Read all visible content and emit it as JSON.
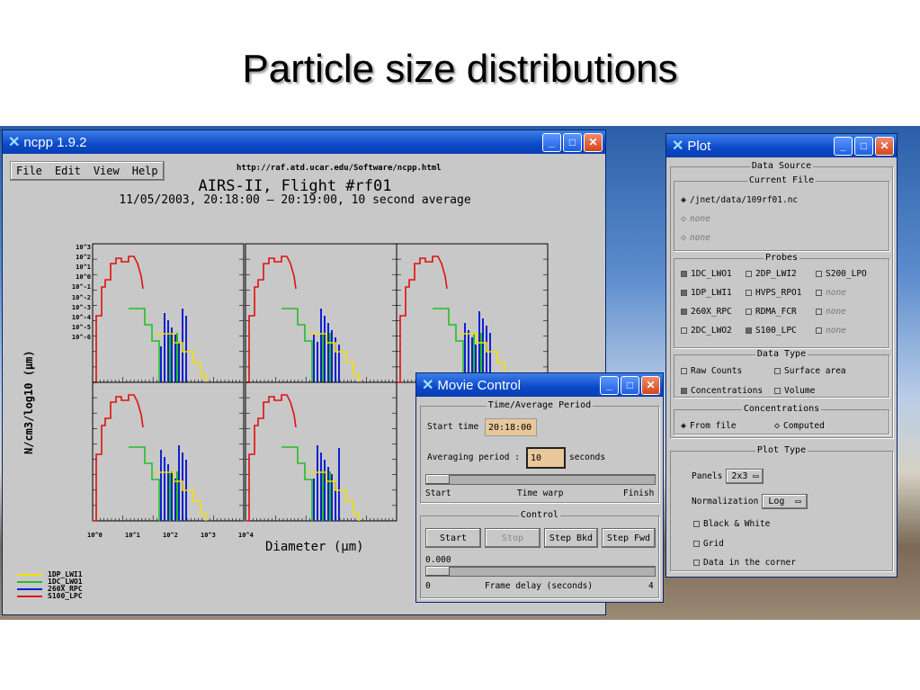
{
  "slide": {
    "title": "Particle size distributions"
  },
  "ncpp": {
    "window_title": "ncpp 1.9.2",
    "menu": [
      "File",
      "Edit",
      "View",
      "Help"
    ],
    "url": "http://raf.atd.ucar.edu/Software/ncpp.html",
    "plot_title": "AIRS-II, Flight #rf01",
    "plot_subtitle": "11/05/2003, 20:18:00 – 20:19:00, 10 second average",
    "ylabel": "N/cm3/log10 (µm)",
    "xlabel": "Diameter (µm)",
    "yticks": [
      "10^3",
      "10^2",
      "10^1",
      "10^0",
      "10^-1",
      "10^-2",
      "10^-3",
      "10^-4",
      "10^-5",
      "10^-6"
    ],
    "xticks": [
      "10^0",
      "10^1",
      "10^2",
      "10^3",
      "10^4"
    ],
    "legend": [
      {
        "label": "1DP_LWI1",
        "color": "#f0e000"
      },
      {
        "label": "1DC_LWO1",
        "color": "#20c020"
      },
      {
        "label": "260X_RPC",
        "color": "#1020d0"
      },
      {
        "label": "S100_LPC",
        "color": "#e01010"
      }
    ]
  },
  "movie": {
    "window_title": "Movie Control",
    "period_header": "Time/Average Period",
    "start_time_label": "Start time",
    "start_time_value": "20:18:00",
    "avg_label": "Averaging period :",
    "avg_value": "10",
    "avg_unit": "seconds",
    "warp_start": "Start",
    "warp_mid": "Time warp",
    "warp_end": "Finish",
    "control_header": "Control",
    "buttons": [
      "Start",
      "Stop",
      "Step Bkd",
      "Step Fwd"
    ],
    "delay_value": "0.000",
    "delay_min": "0",
    "delay_label": "Frame delay (seconds)",
    "delay_max": "4"
  },
  "plotwin": {
    "window_title": "Plot",
    "data_source": "Data Source",
    "current_file": "Current File",
    "files": [
      "/jnet/data/109rf01.nc",
      "none",
      "none"
    ],
    "probes_header": "Probes",
    "probes": [
      {
        "label": "1DC_LWO1",
        "on": true
      },
      {
        "label": "2DP_LWI2",
        "on": false
      },
      {
        "label": "S200_LPO",
        "on": false
      },
      {
        "label": "1DP_LWI1",
        "on": true
      },
      {
        "label": "HVPS_RPO1",
        "on": false
      },
      {
        "label": "none",
        "on": false,
        "dim": true
      },
      {
        "label": "260X_RPC",
        "on": true
      },
      {
        "label": "RDMA_FCR",
        "on": false
      },
      {
        "label": "none",
        "on": false,
        "dim": true
      },
      {
        "label": "2DC_LWO2",
        "on": false
      },
      {
        "label": "S100_LPC",
        "on": true
      },
      {
        "label": "none",
        "on": false,
        "dim": true
      }
    ],
    "data_type_header": "Data Type",
    "data_types": [
      "Raw Counts",
      "Surface area",
      "Concentrations",
      "Volume"
    ],
    "conc_header": "Concentrations",
    "conc_from": "From file",
    "conc_computed": "Computed",
    "plot_type_header": "Plot Type",
    "panels_label": "Panels",
    "panels_value": "2x3",
    "norm_label": "Normalization",
    "norm_value": "Log",
    "options": [
      "Black & White",
      "Grid",
      "Data in the corner"
    ]
  }
}
